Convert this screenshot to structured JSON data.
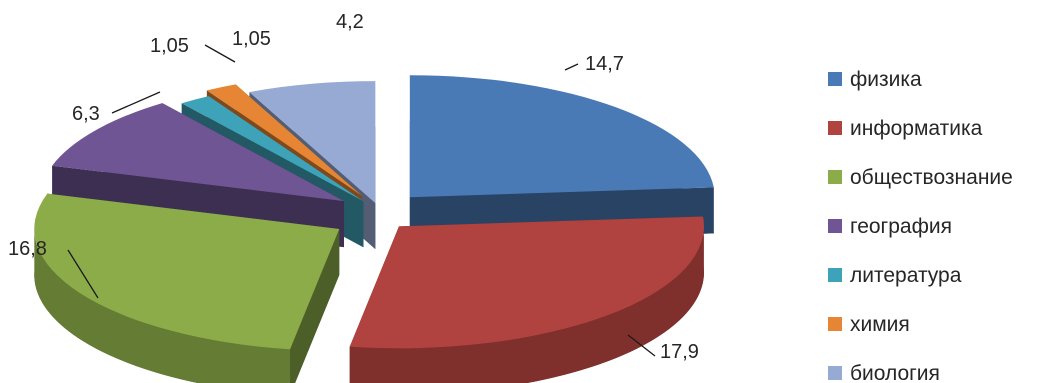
{
  "chart_data": {
    "type": "pie",
    "style": "3d-exploded",
    "categories": [
      "физика",
      "информатика",
      "обществознание",
      "география",
      "литература",
      "химия",
      "биология"
    ],
    "values": [
      14.7,
      17.9,
      16.8,
      6.3,
      1.05,
      1.05,
      4.2
    ],
    "value_labels": [
      "14,7",
      "17,9",
      "16,8",
      "6,3",
      "1,05",
      "1,05",
      "4,2"
    ],
    "colors": [
      "#4a7ab5",
      "#b0433f",
      "#8cac4a",
      "#6f5594",
      "#3ea2b8",
      "#e68534",
      "#96aad4"
    ],
    "legend": {
      "position": "right",
      "entries": [
        "физика",
        "информатика",
        "обществознание",
        "география",
        "литература",
        "химия",
        "биология"
      ]
    }
  }
}
